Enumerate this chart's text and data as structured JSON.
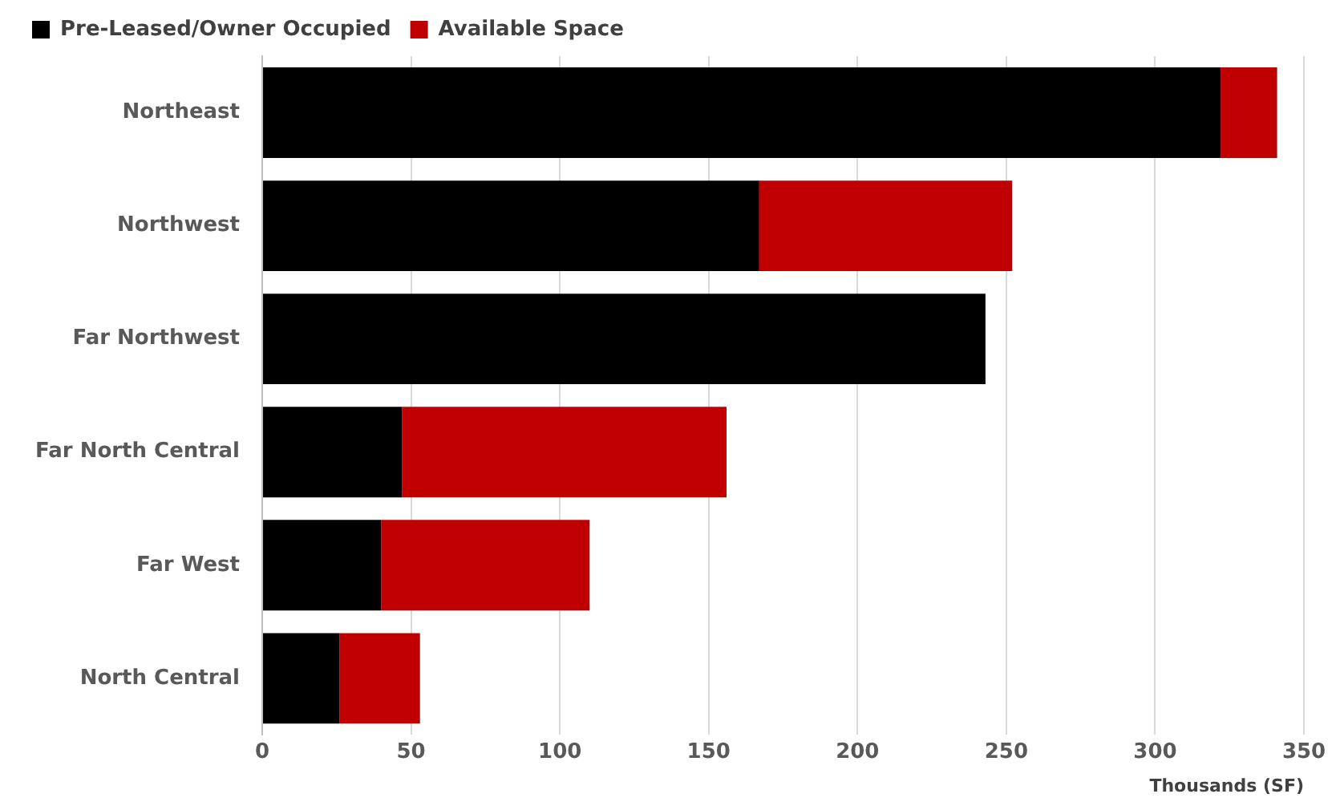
{
  "chart_data": {
    "type": "bar",
    "orientation": "horizontal",
    "stacked": true,
    "xlabel": "Thousands (SF)",
    "categories": [
      "Northeast",
      "Northwest",
      "Far Northwest",
      "Far North Central",
      "Far West",
      "North Central"
    ],
    "series": [
      {
        "name": "Pre-Leased/Owner Occupied",
        "color": "#000000",
        "values": [
          322,
          167,
          243,
          47,
          40,
          26
        ]
      },
      {
        "name": "Available Space",
        "color": "#c00000",
        "values": [
          19,
          85,
          null,
          109,
          70,
          27
        ]
      }
    ],
    "xlim": [
      0,
      350
    ],
    "xticks": [
      0,
      50,
      100,
      150,
      200,
      250,
      300,
      350
    ],
    "grid": "x",
    "legend": "top left"
  }
}
